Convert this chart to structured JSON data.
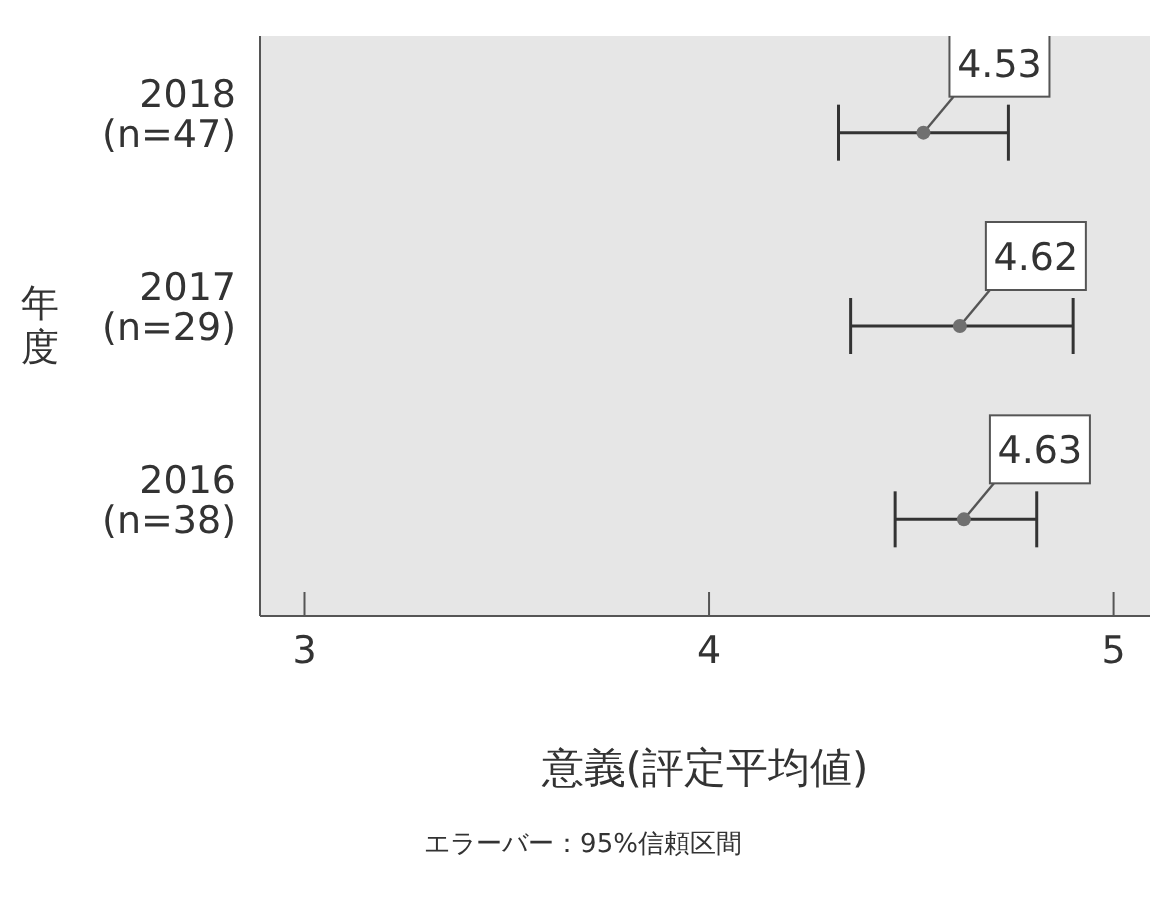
{
  "chart_data": {
    "type": "scatter",
    "orientation": "horizontal",
    "categories": [
      "2018 (n=47)",
      "2017 (n=29)",
      "2016 (n=38)"
    ],
    "values": [
      4.53,
      4.62,
      4.63
    ],
    "errors": [
      [
        4.32,
        4.74
      ],
      [
        4.35,
        4.9
      ],
      [
        4.46,
        4.81
      ]
    ],
    "color": "#707070",
    "marker": "circle",
    "data_labels": true,
    "xlim": [
      2.89,
      5.09
    ],
    "xticks": [
      3,
      4,
      5
    ],
    "xlabel": "意義(評定平均値)",
    "ylabel": "年度",
    "annotations": [
      "エラーバー：95%信頼区間"
    ]
  }
}
